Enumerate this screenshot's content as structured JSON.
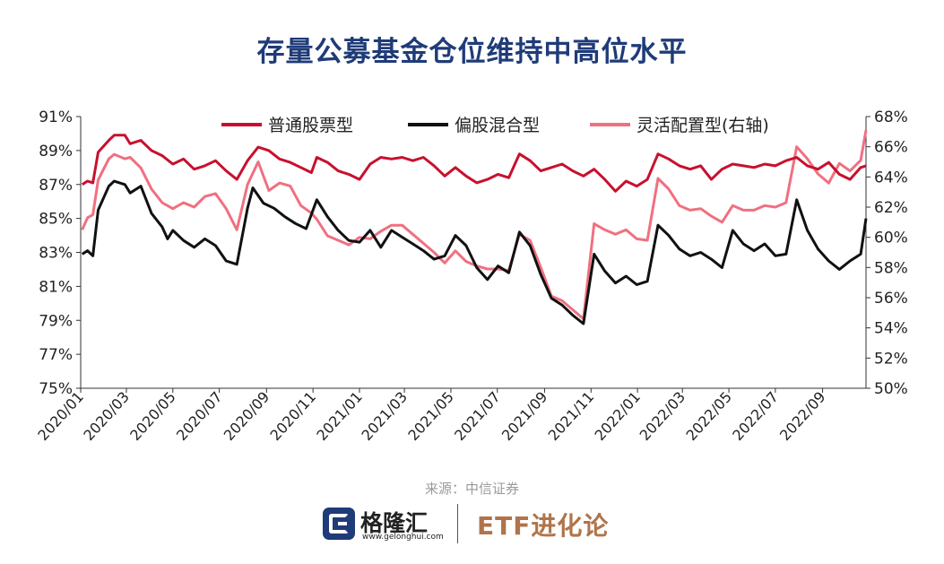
{
  "title": "存量公募基金仓位维持中高位水平",
  "source": "来源：中信证券",
  "footer": {
    "brand": "格隆汇",
    "brand_url": "www.gelonghui.com",
    "channel": "ETF进化论"
  },
  "chart_data": {
    "type": "line",
    "x_tick_labels": [
      "2020/01",
      "2020/03",
      "2020/05",
      "2020/07",
      "2020/09",
      "2020/11",
      "2021/01",
      "2021/03",
      "2021/05",
      "2021/07",
      "2021/09",
      "2021/11",
      "2022/01",
      "2022/03",
      "2022/05",
      "2022/07",
      "2022/09"
    ],
    "x_range": [
      "2020/01",
      "2022/10"
    ],
    "ylim_left": [
      75,
      91
    ],
    "ylim_right": [
      50,
      68
    ],
    "left_ticks": [
      "75%",
      "77%",
      "79%",
      "81%",
      "83%",
      "85%",
      "87%",
      "89%",
      "91%"
    ],
    "right_ticks": [
      "50%",
      "52%",
      "54%",
      "56%",
      "58%",
      "60%",
      "62%",
      "64%",
      "66%",
      "68%"
    ],
    "grid": false,
    "legend_position": "top",
    "colors": {
      "普通股票型": "#c8102e",
      "偏股混合型": "#111111",
      "灵活配置型": "#f07080"
    },
    "series": [
      {
        "name": "普通股票型",
        "axis": "left",
        "points": [
          [
            "2020/01/03",
            87.0
          ],
          [
            "2020/01/10",
            87.2
          ],
          [
            "2020/01/17",
            87.1
          ],
          [
            "2020/01/24",
            88.9
          ],
          [
            "2020/02/07",
            89.6
          ],
          [
            "2020/02/14",
            89.9
          ],
          [
            "2020/02/28",
            89.9
          ],
          [
            "2020/03/06",
            89.4
          ],
          [
            "2020/03/20",
            89.6
          ],
          [
            "2020/04/03",
            89.0
          ],
          [
            "2020/04/17",
            88.7
          ],
          [
            "2020/05/01",
            88.2
          ],
          [
            "2020/05/15",
            88.5
          ],
          [
            "2020/05/29",
            87.9
          ],
          [
            "2020/06/12",
            88.1
          ],
          [
            "2020/06/26",
            88.4
          ],
          [
            "2020/07/10",
            87.8
          ],
          [
            "2020/07/24",
            87.3
          ],
          [
            "2020/08/07",
            88.4
          ],
          [
            "2020/08/21",
            89.2
          ],
          [
            "2020/09/04",
            89.0
          ],
          [
            "2020/09/18",
            88.5
          ],
          [
            "2020/10/02",
            88.3
          ],
          [
            "2020/10/16",
            88.0
          ],
          [
            "2020/10/30",
            87.7
          ],
          [
            "2020/11/06",
            88.6
          ],
          [
            "2020/11/20",
            88.3
          ],
          [
            "2020/12/04",
            87.8
          ],
          [
            "2020/12/18",
            87.6
          ],
          [
            "2021/01/01",
            87.3
          ],
          [
            "2021/01/15",
            88.2
          ],
          [
            "2021/01/29",
            88.6
          ],
          [
            "2021/02/12",
            88.5
          ],
          [
            "2021/02/26",
            88.6
          ],
          [
            "2021/03/12",
            88.4
          ],
          [
            "2021/03/26",
            88.6
          ],
          [
            "2021/04/09",
            88.1
          ],
          [
            "2021/04/23",
            87.5
          ],
          [
            "2021/05/07",
            88.0
          ],
          [
            "2021/05/21",
            87.5
          ],
          [
            "2021/06/04",
            87.1
          ],
          [
            "2021/06/18",
            87.3
          ],
          [
            "2021/07/02",
            87.6
          ],
          [
            "2021/07/16",
            87.4
          ],
          [
            "2021/07/30",
            88.8
          ],
          [
            "2021/08/13",
            88.4
          ],
          [
            "2021/08/27",
            87.8
          ],
          [
            "2021/09/10",
            88.0
          ],
          [
            "2021/09/24",
            88.2
          ],
          [
            "2021/10/08",
            87.8
          ],
          [
            "2021/10/22",
            87.5
          ],
          [
            "2021/11/05",
            87.9
          ],
          [
            "2021/11/19",
            87.3
          ],
          [
            "2021/12/03",
            86.6
          ],
          [
            "2021/12/17",
            87.2
          ],
          [
            "2021/12/31",
            86.9
          ],
          [
            "2022/01/14",
            87.3
          ],
          [
            "2022/01/28",
            88.8
          ],
          [
            "2022/02/11",
            88.5
          ],
          [
            "2022/02/25",
            88.1
          ],
          [
            "2022/03/11",
            87.9
          ],
          [
            "2022/03/25",
            88.1
          ],
          [
            "2022/04/08",
            87.3
          ],
          [
            "2022/04/22",
            87.9
          ],
          [
            "2022/05/06",
            88.2
          ],
          [
            "2022/05/20",
            88.1
          ],
          [
            "2022/06/03",
            88.0
          ],
          [
            "2022/06/17",
            88.2
          ],
          [
            "2022/07/01",
            88.1
          ],
          [
            "2022/07/15",
            88.4
          ],
          [
            "2022/07/29",
            88.6
          ],
          [
            "2022/08/12",
            88.1
          ],
          [
            "2022/08/26",
            87.9
          ],
          [
            "2022/09/09",
            88.3
          ],
          [
            "2022/09/23",
            87.6
          ],
          [
            "2022/10/07",
            87.3
          ],
          [
            "2022/10/21",
            88.0
          ],
          [
            "2022/10/28",
            88.1
          ]
        ]
      },
      {
        "name": "偏股混合型",
        "axis": "left",
        "points": [
          [
            "2020/01/03",
            82.9
          ],
          [
            "2020/01/10",
            83.1
          ],
          [
            "2020/01/17",
            82.8
          ],
          [
            "2020/01/24",
            85.5
          ],
          [
            "2020/02/07",
            86.9
          ],
          [
            "2020/02/14",
            87.2
          ],
          [
            "2020/02/28",
            87.0
          ],
          [
            "2020/03/06",
            86.5
          ],
          [
            "2020/03/20",
            86.9
          ],
          [
            "2020/04/03",
            85.3
          ],
          [
            "2020/04/17",
            84.5
          ],
          [
            "2020/04/24",
            83.8
          ],
          [
            "2020/05/01",
            84.3
          ],
          [
            "2020/05/15",
            83.7
          ],
          [
            "2020/05/29",
            83.3
          ],
          [
            "2020/06/12",
            83.8
          ],
          [
            "2020/06/26",
            83.4
          ],
          [
            "2020/07/10",
            82.5
          ],
          [
            "2020/07/24",
            82.3
          ],
          [
            "2020/08/07",
            85.6
          ],
          [
            "2020/08/14",
            86.8
          ],
          [
            "2020/08/28",
            85.9
          ],
          [
            "2020/09/11",
            85.6
          ],
          [
            "2020/09/25",
            85.1
          ],
          [
            "2020/10/09",
            84.7
          ],
          [
            "2020/10/23",
            84.4
          ],
          [
            "2020/11/06",
            86.1
          ],
          [
            "2020/11/20",
            85.1
          ],
          [
            "2020/12/04",
            84.3
          ],
          [
            "2020/12/18",
            83.7
          ],
          [
            "2021/01/01",
            83.6
          ],
          [
            "2021/01/15",
            84.3
          ],
          [
            "2021/01/29",
            83.3
          ],
          [
            "2021/02/12",
            84.3
          ],
          [
            "2021/02/26",
            83.9
          ],
          [
            "2021/03/12",
            83.5
          ],
          [
            "2021/03/26",
            83.1
          ],
          [
            "2021/04/09",
            82.6
          ],
          [
            "2021/04/23",
            82.8
          ],
          [
            "2021/05/07",
            84.0
          ],
          [
            "2021/05/21",
            83.4
          ],
          [
            "2021/06/04",
            82.1
          ],
          [
            "2021/06/18",
            81.4
          ],
          [
            "2021/07/02",
            82.2
          ],
          [
            "2021/07/16",
            81.8
          ],
          [
            "2021/07/30",
            84.2
          ],
          [
            "2021/08/13",
            83.4
          ],
          [
            "2021/08/27",
            81.7
          ],
          [
            "2021/09/10",
            80.3
          ],
          [
            "2021/09/24",
            79.9
          ],
          [
            "2021/10/08",
            79.3
          ],
          [
            "2021/10/22",
            78.8
          ],
          [
            "2021/11/05",
            82.9
          ],
          [
            "2021/11/19",
            81.9
          ],
          [
            "2021/12/03",
            81.2
          ],
          [
            "2021/12/17",
            81.6
          ],
          [
            "2021/12/31",
            81.1
          ],
          [
            "2022/01/14",
            81.3
          ],
          [
            "2022/01/28",
            84.6
          ],
          [
            "2022/02/11",
            84.0
          ],
          [
            "2022/02/25",
            83.2
          ],
          [
            "2022/03/11",
            82.8
          ],
          [
            "2022/03/25",
            83.0
          ],
          [
            "2022/04/08",
            82.6
          ],
          [
            "2022/04/22",
            82.1
          ],
          [
            "2022/05/06",
            84.3
          ],
          [
            "2022/05/20",
            83.5
          ],
          [
            "2022/06/03",
            83.1
          ],
          [
            "2022/06/17",
            83.5
          ],
          [
            "2022/07/01",
            82.8
          ],
          [
            "2022/07/15",
            82.9
          ],
          [
            "2022/07/29",
            86.1
          ],
          [
            "2022/08/12",
            84.3
          ],
          [
            "2022/08/26",
            83.2
          ],
          [
            "2022/09/09",
            82.5
          ],
          [
            "2022/09/23",
            82.0
          ],
          [
            "2022/10/07",
            82.5
          ],
          [
            "2022/10/21",
            82.9
          ],
          [
            "2022/10/28",
            85.0
          ]
        ]
      },
      {
        "name": "灵活配置型(右轴)",
        "axis": "right",
        "points": [
          [
            "2020/01/03",
            60.5
          ],
          [
            "2020/01/10",
            61.3
          ],
          [
            "2020/01/17",
            61.5
          ],
          [
            "2020/01/24",
            63.8
          ],
          [
            "2020/02/07",
            65.2
          ],
          [
            "2020/02/14",
            65.5
          ],
          [
            "2020/02/28",
            65.2
          ],
          [
            "2020/03/06",
            65.3
          ],
          [
            "2020/03/20",
            64.6
          ],
          [
            "2020/04/03",
            63.2
          ],
          [
            "2020/04/17",
            62.3
          ],
          [
            "2020/05/01",
            61.9
          ],
          [
            "2020/05/15",
            62.3
          ],
          [
            "2020/05/29",
            62.0
          ],
          [
            "2020/06/12",
            62.7
          ],
          [
            "2020/06/26",
            62.9
          ],
          [
            "2020/07/10",
            61.9
          ],
          [
            "2020/07/24",
            60.5
          ],
          [
            "2020/08/07",
            63.5
          ],
          [
            "2020/08/21",
            65.0
          ],
          [
            "2020/09/04",
            63.1
          ],
          [
            "2020/09/18",
            63.6
          ],
          [
            "2020/10/02",
            63.4
          ],
          [
            "2020/10/16",
            62.1
          ],
          [
            "2020/10/30",
            61.6
          ],
          [
            "2020/11/06",
            61.2
          ],
          [
            "2020/11/20",
            60.1
          ],
          [
            "2020/12/04",
            59.8
          ],
          [
            "2020/12/18",
            59.5
          ],
          [
            "2021/01/01",
            60.0
          ],
          [
            "2021/01/15",
            59.9
          ],
          [
            "2021/01/29",
            60.4
          ],
          [
            "2021/02/12",
            60.8
          ],
          [
            "2021/02/26",
            60.8
          ],
          [
            "2021/03/12",
            60.2
          ],
          [
            "2021/03/26",
            59.6
          ],
          [
            "2021/04/09",
            59.0
          ],
          [
            "2021/04/23",
            58.3
          ],
          [
            "2021/05/07",
            59.1
          ],
          [
            "2021/05/21",
            58.4
          ],
          [
            "2021/06/04",
            58.1
          ],
          [
            "2021/06/18",
            57.9
          ],
          [
            "2021/07/02",
            57.9
          ],
          [
            "2021/07/16",
            57.8
          ],
          [
            "2021/07/30",
            60.2
          ],
          [
            "2021/08/13",
            59.8
          ],
          [
            "2021/08/27",
            58.0
          ],
          [
            "2021/09/10",
            56.1
          ],
          [
            "2021/09/24",
            55.8
          ],
          [
            "2021/10/08",
            55.2
          ],
          [
            "2021/10/22",
            54.6
          ],
          [
            "2021/11/05",
            60.9
          ],
          [
            "2021/11/19",
            60.5
          ],
          [
            "2021/12/03",
            60.2
          ],
          [
            "2021/12/17",
            60.5
          ],
          [
            "2021/12/31",
            59.9
          ],
          [
            "2022/01/14",
            59.8
          ],
          [
            "2022/01/28",
            63.9
          ],
          [
            "2022/02/11",
            63.2
          ],
          [
            "2022/02/25",
            62.1
          ],
          [
            "2022/03/11",
            61.8
          ],
          [
            "2022/03/25",
            61.9
          ],
          [
            "2022/04/08",
            61.4
          ],
          [
            "2022/04/22",
            61.0
          ],
          [
            "2022/05/06",
            62.1
          ],
          [
            "2022/05/20",
            61.8
          ],
          [
            "2022/06/03",
            61.8
          ],
          [
            "2022/06/17",
            62.1
          ],
          [
            "2022/07/01",
            62.0
          ],
          [
            "2022/07/15",
            62.3
          ],
          [
            "2022/07/29",
            66.0
          ],
          [
            "2022/08/12",
            65.2
          ],
          [
            "2022/08/26",
            64.2
          ],
          [
            "2022/09/09",
            63.6
          ],
          [
            "2022/09/23",
            64.9
          ],
          [
            "2022/10/07",
            64.4
          ],
          [
            "2022/10/21",
            65.1
          ],
          [
            "2022/10/28",
            67.1
          ]
        ]
      }
    ]
  }
}
